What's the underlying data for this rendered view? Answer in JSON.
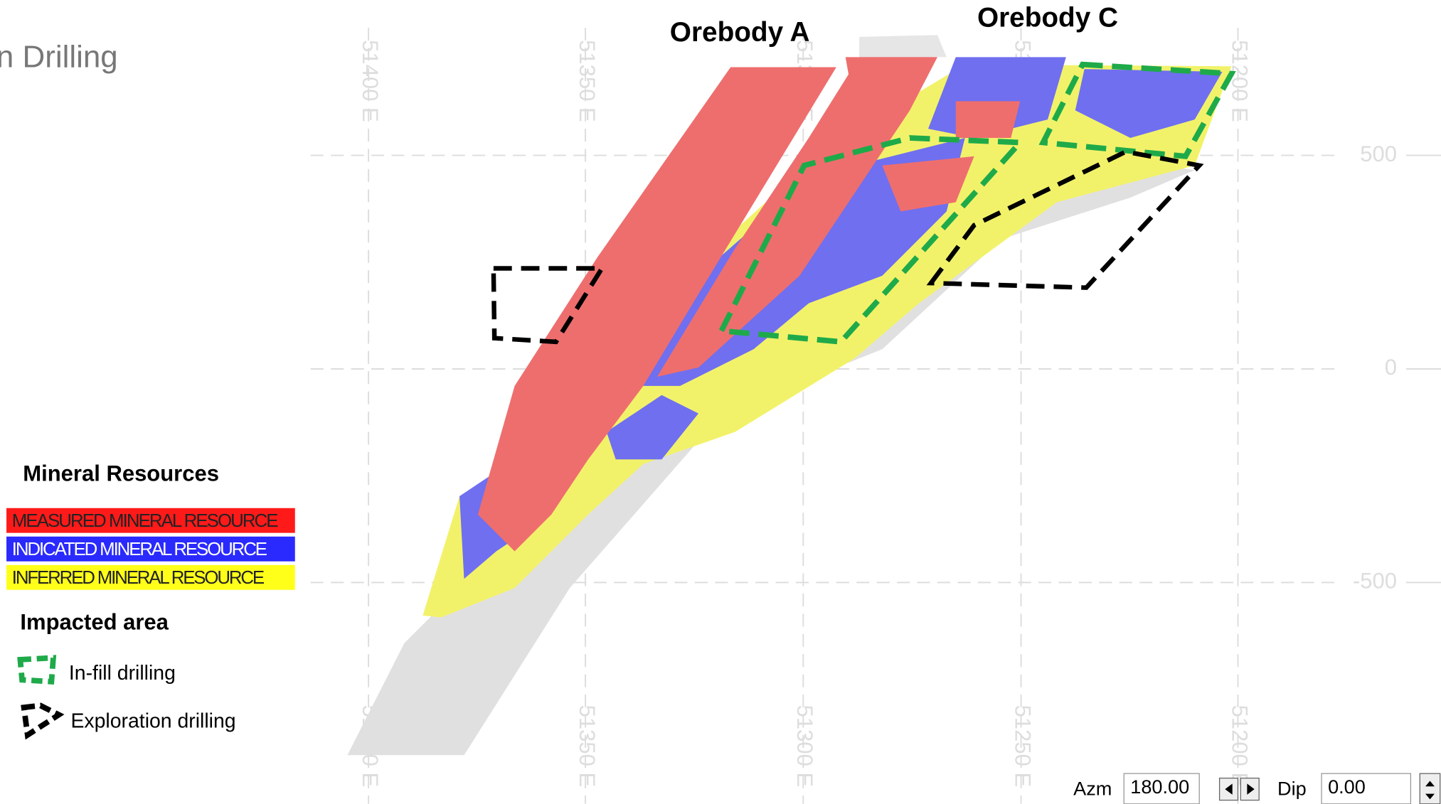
{
  "header": {
    "title": "n Drilling"
  },
  "orebodies": [
    "Orebody A",
    "Orebody C"
  ],
  "eastings": [
    "51400 E",
    "51350 E",
    "51300 E",
    "51250 E",
    "51200 E"
  ],
  "elevations": [
    500,
    0,
    -500
  ],
  "legend": {
    "title": "Mineral Resources",
    "items": [
      "MEASURED MINERAL RESOURCE",
      "INDICATED MINERAL RESOURCE",
      "INFERRED MINERAL RESOURCE"
    ],
    "impact_title": "Impacted area",
    "impact_items": [
      "In-fill drilling",
      "Exploration drilling"
    ]
  },
  "controls": {
    "azm_label": "Azm",
    "azm_value": "180.00",
    "dip_label": "Dip",
    "dip_value": "0.00"
  }
}
